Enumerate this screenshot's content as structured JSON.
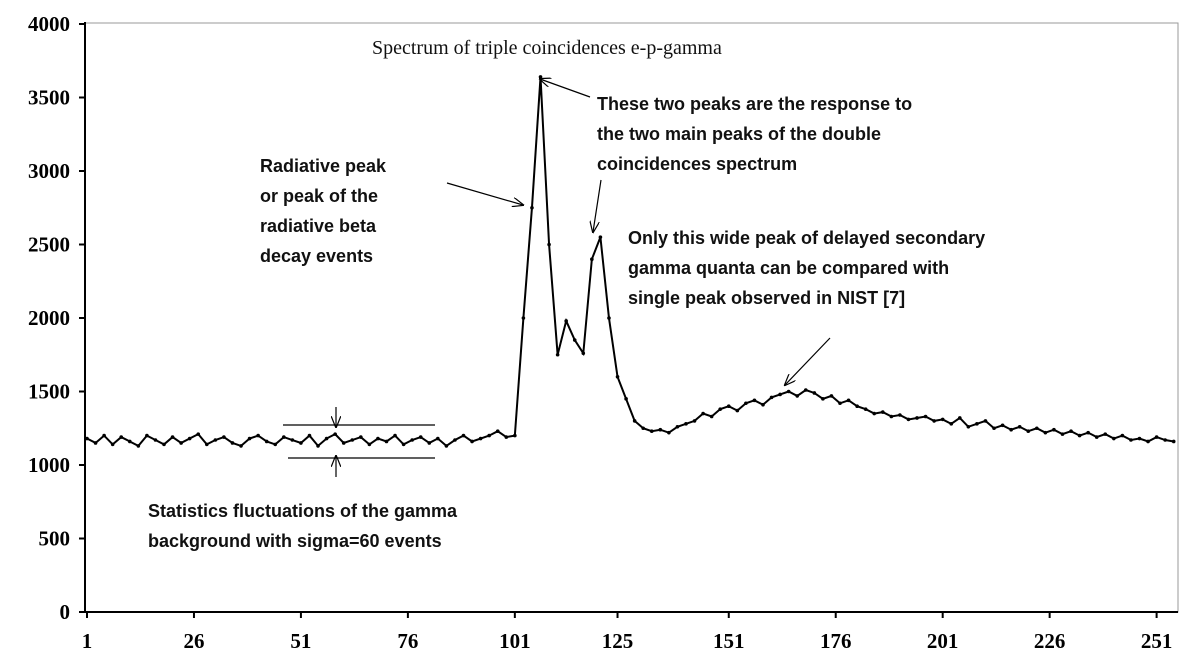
{
  "chart_data": {
    "type": "line",
    "title": "Spectrum of triple coincidences e-p-gamma",
    "annotations": [
      [
        "Radiative peak",
        "or peak of the",
        "radiative beta",
        "decay events"
      ],
      [
        "These two peaks are the response to",
        "the two main peaks of the double",
        "coincidences spectrum"
      ],
      [
        "Only this wide peak of delayed secondary",
        "gamma quanta can be compared with",
        "single peak observed in NIST [7]"
      ],
      [
        "Statistics fluctuations of the gamma",
        "background with sigma=60 events"
      ]
    ],
    "x": [
      1,
      3,
      5,
      7,
      9,
      11,
      13,
      15,
      17,
      19,
      21,
      23,
      25,
      27,
      29,
      31,
      33,
      35,
      37,
      39,
      41,
      43,
      45,
      47,
      49,
      51,
      53,
      55,
      57,
      59,
      61,
      63,
      65,
      67,
      69,
      71,
      73,
      75,
      77,
      79,
      81,
      83,
      85,
      87,
      89,
      91,
      93,
      95,
      97,
      99,
      101,
      103,
      105,
      107,
      109,
      111,
      113,
      115,
      117,
      119,
      121,
      123,
      125,
      127,
      129,
      131,
      133,
      135,
      137,
      139,
      141,
      143,
      145,
      147,
      149,
      151,
      153,
      155,
      157,
      159,
      161,
      163,
      165,
      167,
      169,
      171,
      173,
      175,
      177,
      179,
      181,
      183,
      185,
      187,
      189,
      191,
      193,
      195,
      197,
      199,
      201,
      203,
      205,
      207,
      209,
      211,
      213,
      215,
      217,
      219,
      221,
      223,
      225,
      227,
      229,
      231,
      233,
      235,
      237,
      239,
      241,
      243,
      245,
      247,
      249,
      251,
      253,
      255
    ],
    "series": [
      {
        "color": "#000000",
        "values": [
          1180,
          1150,
          1200,
          1140,
          1190,
          1160,
          1130,
          1200,
          1170,
          1140,
          1190,
          1150,
          1180,
          1210,
          1140,
          1170,
          1190,
          1150,
          1130,
          1180,
          1200,
          1160,
          1140,
          1190,
          1170,
          1150,
          1200,
          1130,
          1180,
          1210,
          1150,
          1170,
          1190,
          1140,
          1180,
          1160,
          1200,
          1140,
          1170,
          1190,
          1150,
          1180,
          1130,
          1170,
          1200,
          1160,
          1180,
          1200,
          1230,
          1190,
          1200,
          2000,
          2750,
          3640,
          2500,
          1750,
          1980,
          1850,
          1760,
          2400,
          2550,
          2000,
          1600,
          1450,
          1300,
          1250,
          1230,
          1240,
          1220,
          1260,
          1280,
          1300,
          1350,
          1330,
          1380,
          1400,
          1370,
          1420,
          1440,
          1410,
          1460,
          1480,
          1500,
          1470,
          1510,
          1490,
          1450,
          1470,
          1420,
          1440,
          1400,
          1380,
          1350,
          1360,
          1330,
          1340,
          1310,
          1320,
          1330,
          1300,
          1310,
          1280,
          1320,
          1260,
          1280,
          1300,
          1250,
          1270,
          1240,
          1260,
          1230,
          1250,
          1220,
          1240,
          1210,
          1230,
          1200,
          1220,
          1190,
          1210,
          1180,
          1200,
          1170,
          1180,
          1160,
          1190,
          1170,
          1160
        ]
      }
    ],
    "xlim": [
      1,
      256
    ],
    "ylim": [
      0,
      4000
    ],
    "xticks": [
      1,
      26,
      51,
      76,
      101,
      125,
      151,
      176,
      201,
      226,
      251
    ],
    "yticks": [
      0,
      500,
      1000,
      1500,
      2000,
      2500,
      3000,
      3500,
      4000
    ]
  }
}
